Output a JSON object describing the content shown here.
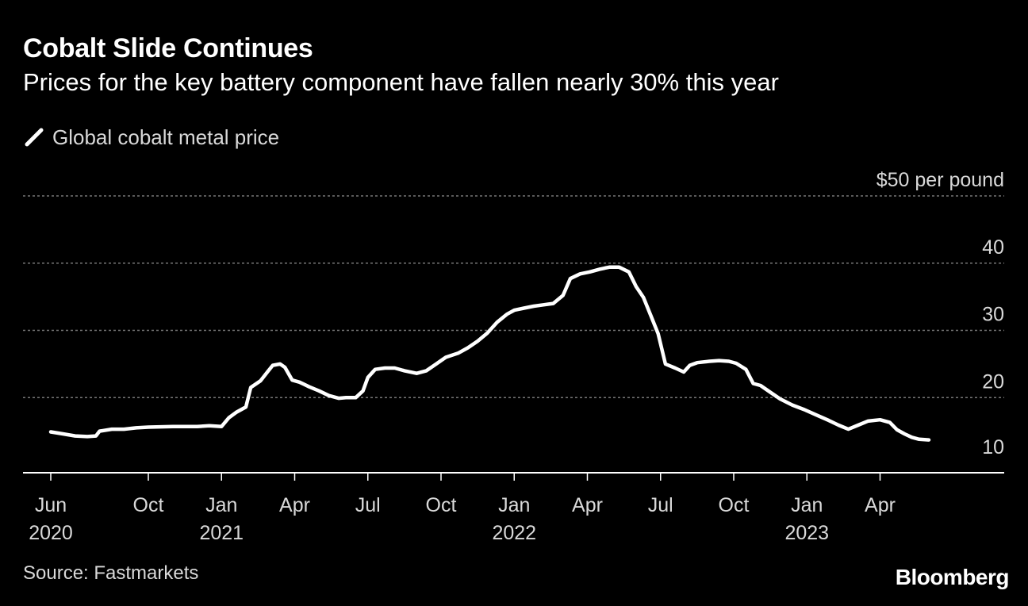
{
  "header": {
    "title": "Cobalt Slide Continues",
    "subtitle": "Prices for the key battery component have fallen nearly 30% this year"
  },
  "legend": {
    "label": "Global cobalt metal price"
  },
  "footer": {
    "source": "Source: Fastmarkets",
    "brand": "Bloomberg"
  },
  "colors": {
    "background": "#000000",
    "line": "#ffffff",
    "grid": "#777777",
    "text": "#d9d9d9"
  },
  "chart_data": {
    "type": "line",
    "title": "Cobalt Slide Continues",
    "subtitle": "Prices for the key battery component have fallen nearly 30% this year",
    "ylabel": "$ per pound",
    "ylim": [
      10,
      50
    ],
    "y_ticks": [
      {
        "value": 50,
        "label": "$50",
        "unit_label": "per pound"
      },
      {
        "value": 40,
        "label": "40"
      },
      {
        "value": 30,
        "label": "30"
      },
      {
        "value": 20,
        "label": "20"
      },
      {
        "value": 10,
        "label": "10"
      }
    ],
    "x_ticks": [
      {
        "month": 0,
        "label": "Jun",
        "year": "2020"
      },
      {
        "month": 4,
        "label": "Oct"
      },
      {
        "month": 7,
        "label": "Jan",
        "year": "2021"
      },
      {
        "month": 10,
        "label": "Apr"
      },
      {
        "month": 13,
        "label": "Jul"
      },
      {
        "month": 16,
        "label": "Oct"
      },
      {
        "month": 19,
        "label": "Jan",
        "year": "2022"
      },
      {
        "month": 22,
        "label": "Apr"
      },
      {
        "month": 25,
        "label": "Jul"
      },
      {
        "month": 28,
        "label": "Oct"
      },
      {
        "month": 31,
        "label": "Jan",
        "year": "2023"
      },
      {
        "month": 34,
        "label": "Apr"
      }
    ],
    "series": [
      {
        "name": "Global cobalt metal price",
        "x_unit": "months since Jun 1, 2020",
        "points": [
          [
            0,
            14.9
          ],
          [
            0.5,
            14.6
          ],
          [
            1.0,
            14.3
          ],
          [
            1.5,
            14.2
          ],
          [
            1.85,
            14.3
          ],
          [
            2.0,
            15.0
          ],
          [
            2.5,
            15.3
          ],
          [
            3.0,
            15.3
          ],
          [
            3.5,
            15.5
          ],
          [
            4.0,
            15.6
          ],
          [
            5.0,
            15.7
          ],
          [
            6.0,
            15.7
          ],
          [
            6.5,
            15.8
          ],
          [
            7.0,
            15.7
          ],
          [
            7.3,
            17.0
          ],
          [
            7.6,
            17.8
          ],
          [
            8.0,
            18.6
          ],
          [
            8.2,
            21.5
          ],
          [
            8.6,
            22.5
          ],
          [
            8.9,
            23.9
          ],
          [
            9.1,
            24.8
          ],
          [
            9.4,
            25.0
          ],
          [
            9.6,
            24.5
          ],
          [
            9.9,
            22.6
          ],
          [
            10.2,
            22.3
          ],
          [
            10.6,
            21.6
          ],
          [
            11.0,
            21.0
          ],
          [
            11.4,
            20.3
          ],
          [
            11.8,
            19.9
          ],
          [
            12.1,
            20.0
          ],
          [
            12.5,
            20.0
          ],
          [
            12.8,
            21.0
          ],
          [
            13.0,
            23.0
          ],
          [
            13.3,
            24.2
          ],
          [
            13.7,
            24.4
          ],
          [
            14.1,
            24.4
          ],
          [
            14.5,
            24.0
          ],
          [
            15.0,
            23.6
          ],
          [
            15.4,
            24.0
          ],
          [
            15.8,
            25.0
          ],
          [
            16.2,
            26.0
          ],
          [
            16.7,
            26.6
          ],
          [
            17.1,
            27.4
          ],
          [
            17.5,
            28.4
          ],
          [
            17.9,
            29.6
          ],
          [
            18.3,
            31.2
          ],
          [
            18.7,
            32.4
          ],
          [
            19.0,
            33.0
          ],
          [
            19.4,
            33.3
          ],
          [
            19.8,
            33.6
          ],
          [
            20.2,
            33.8
          ],
          [
            20.6,
            34.0
          ],
          [
            21.0,
            35.2
          ],
          [
            21.3,
            37.7
          ],
          [
            21.7,
            38.4
          ],
          [
            22.1,
            38.7
          ],
          [
            22.5,
            39.1
          ],
          [
            22.9,
            39.4
          ],
          [
            23.3,
            39.4
          ],
          [
            23.7,
            38.7
          ],
          [
            24.0,
            36.5
          ],
          [
            24.3,
            34.9
          ],
          [
            24.6,
            32.2
          ],
          [
            24.9,
            29.5
          ],
          [
            25.2,
            25.0
          ],
          [
            25.6,
            24.4
          ],
          [
            25.95,
            23.8
          ],
          [
            26.2,
            24.8
          ],
          [
            26.5,
            25.2
          ],
          [
            27.0,
            25.4
          ],
          [
            27.4,
            25.5
          ],
          [
            27.8,
            25.4
          ],
          [
            28.1,
            25.1
          ],
          [
            28.5,
            24.2
          ],
          [
            28.8,
            22.1
          ],
          [
            29.1,
            21.8
          ],
          [
            29.5,
            20.8
          ],
          [
            29.9,
            19.8
          ],
          [
            30.4,
            18.9
          ],
          [
            30.9,
            18.2
          ],
          [
            31.4,
            17.4
          ],
          [
            31.9,
            16.6
          ],
          [
            32.3,
            15.9
          ],
          [
            32.7,
            15.3
          ],
          [
            33.1,
            15.9
          ],
          [
            33.5,
            16.5
          ],
          [
            34.0,
            16.7
          ],
          [
            34.4,
            16.3
          ],
          [
            34.7,
            15.2
          ],
          [
            35.0,
            14.6
          ],
          [
            35.3,
            14.1
          ],
          [
            35.6,
            13.8
          ],
          [
            36.0,
            13.7
          ]
        ]
      }
    ]
  }
}
